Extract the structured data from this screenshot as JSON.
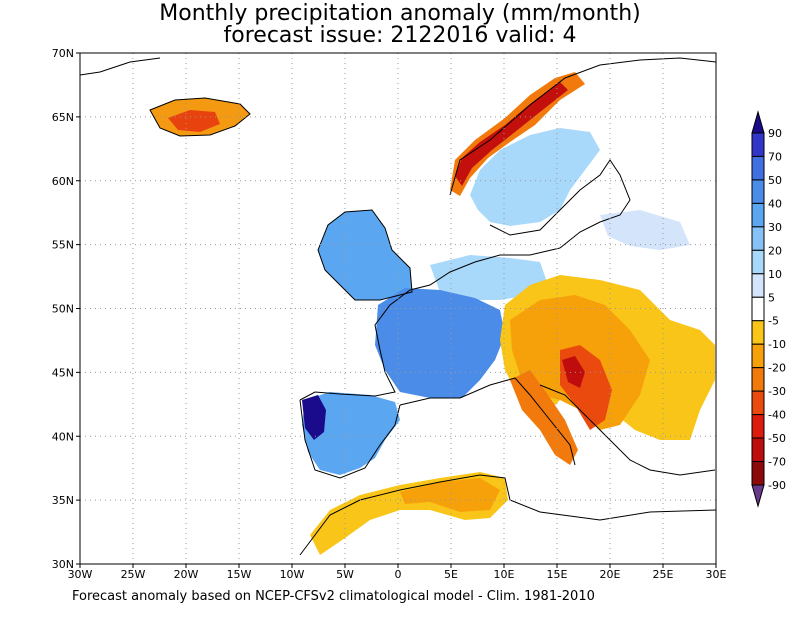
{
  "title": {
    "line1": "Monthly precipitation anomaly (mm/month)",
    "line2": "forecast issue: 2122016 valid: 4"
  },
  "footer": "Forecast anomaly based on NCEP-CFSv2 climatological model - Clim. 1981-2010",
  "map": {
    "lon_range": [
      -30,
      30
    ],
    "lat_range": [
      30,
      70
    ],
    "x_ticks": [
      "30W",
      "25W",
      "20W",
      "15W",
      "10W",
      "5W",
      "0",
      "5E",
      "10E",
      "15E",
      "20E",
      "25E",
      "30E"
    ],
    "y_ticks": [
      "30N",
      "35N",
      "40N",
      "45N",
      "50N",
      "55N",
      "60N",
      "65N",
      "70N"
    ],
    "grid": true
  },
  "legend": {
    "labels": [
      "90",
      "70",
      "50",
      "40",
      "30",
      "20",
      "10",
      "5",
      "-5",
      "-10",
      "-20",
      "-30",
      "-40",
      "-50",
      "-70",
      "-90"
    ],
    "colors": [
      "#1a0a8c",
      "#3236c8",
      "#3f6fe0",
      "#4a8ce8",
      "#5aa6f0",
      "#86c2f6",
      "#a8d8fa",
      "#d4e4fb",
      "#ffffff",
      "#f9c519",
      "#f7a10a",
      "#f27a0c",
      "#ea4a0e",
      "#dd1a0e",
      "#bf0d0d",
      "#8d0a0a",
      "#6a3a8a"
    ]
  }
}
